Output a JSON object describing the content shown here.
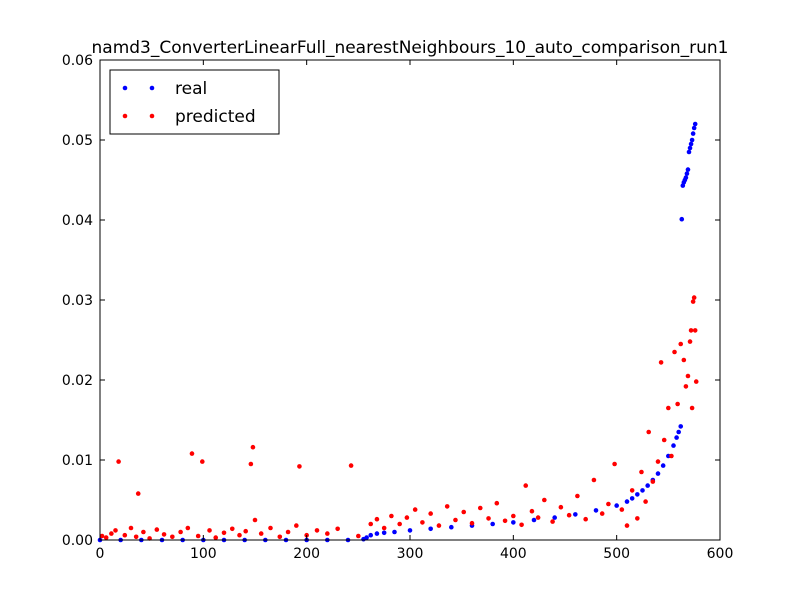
{
  "chart_data": {
    "type": "scatter",
    "title": "namd3_ConverterLinearFull_nearestNeighbours_10_auto_comparison_run1",
    "xlabel": "",
    "ylabel": "",
    "xlim": [
      0,
      600
    ],
    "ylim": [
      0,
      0.06
    ],
    "x_ticks": [
      0,
      100,
      200,
      300,
      400,
      500,
      600
    ],
    "y_ticks": [
      0.0,
      0.01,
      0.02,
      0.03,
      0.04,
      0.05,
      0.06
    ],
    "x_tick_labels": [
      "0",
      "100",
      "200",
      "300",
      "400",
      "500",
      "600"
    ],
    "y_tick_labels": [
      "0.00",
      "0.01",
      "0.02",
      "0.03",
      "0.04",
      "0.05",
      "0.06"
    ],
    "grid": false,
    "legend_position": "top-left",
    "series": [
      {
        "name": "real",
        "color": "#0000ff",
        "x": [
          0,
          20,
          40,
          60,
          80,
          100,
          120,
          140,
          160,
          180,
          200,
          220,
          240,
          255,
          258,
          262,
          268,
          275,
          285,
          300,
          320,
          340,
          360,
          380,
          400,
          420,
          440,
          460,
          480,
          500,
          510,
          515,
          520,
          525,
          530,
          535,
          540,
          545,
          550,
          555,
          558,
          560,
          562,
          563,
          564,
          565,
          566,
          567,
          568,
          569,
          570,
          571,
          572,
          573,
          574,
          575,
          576
        ],
        "y": [
          0.0,
          0.0,
          0.0,
          0.0,
          0.0,
          0.0,
          0.0,
          0.0,
          0.0,
          0.0,
          0.0,
          0.0,
          0.0,
          0.0001,
          0.0003,
          0.0006,
          0.0008,
          0.0009,
          0.001,
          0.0012,
          0.0014,
          0.0016,
          0.0018,
          0.002,
          0.0022,
          0.0025,
          0.0028,
          0.0032,
          0.0037,
          0.0043,
          0.0048,
          0.0052,
          0.0057,
          0.0062,
          0.0068,
          0.0075,
          0.0083,
          0.0093,
          0.0105,
          0.0118,
          0.0128,
          0.0135,
          0.0142,
          0.0401,
          0.0443,
          0.0447,
          0.045,
          0.0453,
          0.0458,
          0.0463,
          0.0485,
          0.049,
          0.0495,
          0.05,
          0.0508,
          0.0515,
          0.052
        ]
      },
      {
        "name": "predicted",
        "color": "#ff0000",
        "x": [
          2,
          6,
          11,
          15,
          18,
          24,
          30,
          35,
          37,
          42,
          48,
          55,
          62,
          70,
          78,
          85,
          89,
          95,
          99,
          106,
          112,
          120,
          128,
          135,
          141,
          146,
          148,
          150,
          156,
          165,
          174,
          182,
          190,
          193,
          200,
          210,
          220,
          230,
          243,
          250,
          262,
          268,
          275,
          282,
          290,
          297,
          305,
          312,
          320,
          328,
          336,
          344,
          352,
          360,
          368,
          376,
          384,
          392,
          400,
          408,
          412,
          418,
          424,
          430,
          438,
          446,
          454,
          462,
          470,
          478,
          486,
          492,
          498,
          505,
          510,
          515,
          520,
          524,
          528,
          531,
          535,
          540,
          543,
          546,
          550,
          553,
          556,
          559,
          562,
          565,
          567,
          569,
          571,
          572,
          573,
          574,
          575,
          576,
          577
        ],
        "y": [
          0.0005,
          0.0003,
          0.0008,
          0.0012,
          0.0098,
          0.0006,
          0.0015,
          0.0004,
          0.0058,
          0.001,
          0.0002,
          0.0013,
          0.0007,
          0.0004,
          0.001,
          0.0015,
          0.0108,
          0.0005,
          0.0098,
          0.0012,
          0.0003,
          0.0009,
          0.0014,
          0.0006,
          0.0011,
          0.0095,
          0.0116,
          0.0025,
          0.0008,
          0.0015,
          0.0004,
          0.001,
          0.0018,
          0.0092,
          0.0006,
          0.0012,
          0.0008,
          0.0014,
          0.0093,
          0.0005,
          0.002,
          0.0026,
          0.0015,
          0.003,
          0.002,
          0.0028,
          0.0038,
          0.0022,
          0.0033,
          0.0018,
          0.0042,
          0.0025,
          0.0035,
          0.0021,
          0.004,
          0.0027,
          0.0046,
          0.0024,
          0.003,
          0.0019,
          0.0068,
          0.0036,
          0.0028,
          0.005,
          0.0023,
          0.0041,
          0.0031,
          0.0055,
          0.0026,
          0.0075,
          0.0033,
          0.0045,
          0.0095,
          0.0038,
          0.0018,
          0.0062,
          0.0027,
          0.0085,
          0.0048,
          0.0135,
          0.0073,
          0.0098,
          0.0222,
          0.0125,
          0.0165,
          0.0105,
          0.0235,
          0.017,
          0.0245,
          0.0225,
          0.0192,
          0.0205,
          0.0248,
          0.0262,
          0.0165,
          0.0298,
          0.0303,
          0.0262,
          0.0198
        ]
      }
    ]
  }
}
